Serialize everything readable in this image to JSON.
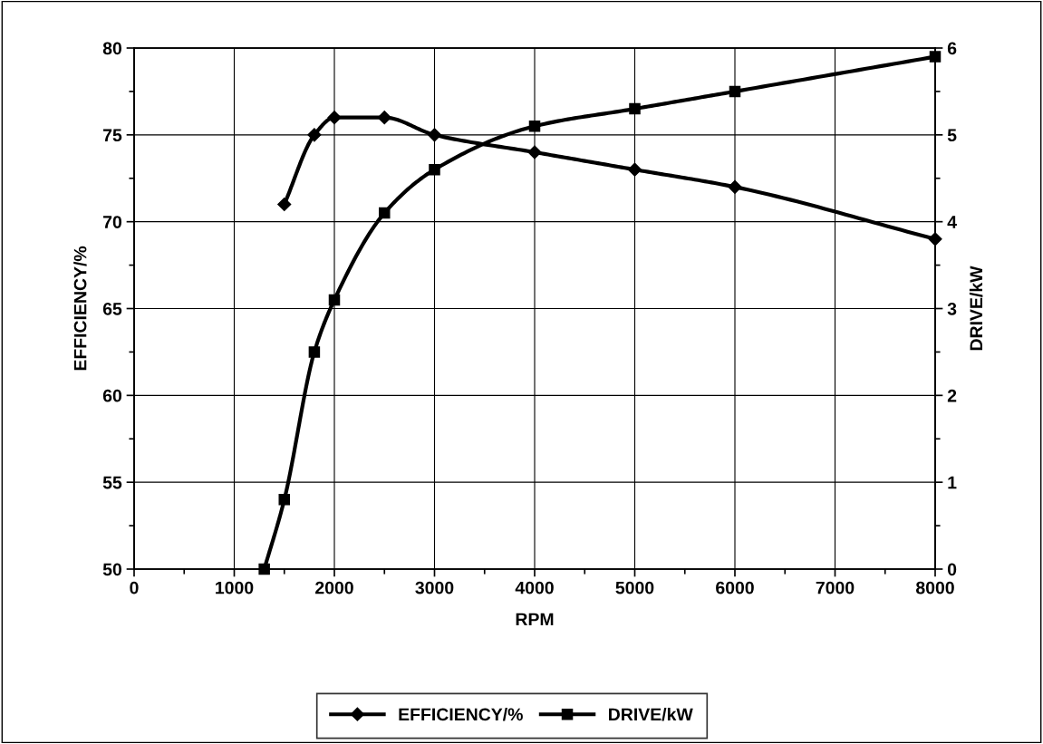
{
  "chart_data": {
    "type": "line",
    "xlabel": "RPM",
    "ylabel": "EFFICIENCY/%",
    "y2label": "DRIVE/kW",
    "series": [
      {
        "name": "EFFICIENCY/%",
        "color": "#000000",
        "marker": "diamond",
        "x": [
          1500,
          1800,
          2000,
          2500,
          3000,
          4000,
          5000,
          6000,
          8000
        ],
        "values": [
          71,
          75,
          76,
          76,
          75,
          74,
          73,
          72,
          69
        ]
      },
      {
        "name": "DRIVE/kW",
        "color": "#000000",
        "marker": "square",
        "axis": "y2",
        "x": [
          1300,
          1500,
          1800,
          2000,
          2500,
          3000,
          4000,
          5000,
          6000,
          8000
        ],
        "values": [
          0,
          0.8,
          2.5,
          3.1,
          4.1,
          4.6,
          5.1,
          5.3,
          5.5,
          5.9
        ]
      }
    ],
    "xlim": [
      0,
      8000
    ],
    "xticks": [
      0,
      {
        "value": 500,
        "label": null
      },
      1000,
      {
        "value": 1500,
        "label": null
      },
      2000,
      {
        "value": 2500,
        "label": null
      },
      3000,
      {
        "value": 3500,
        "label": null
      },
      4000,
      {
        "value": 4500,
        "label": null
      },
      5000,
      {
        "value": 5500,
        "label": null
      },
      6000,
      {
        "value": 6500,
        "label": null
      },
      7000,
      {
        "value": 7500,
        "label": null
      },
      8000
    ],
    "ylim": [
      50,
      80
    ],
    "yticks": [
      50,
      {
        "value": 52.5,
        "label": null
      },
      55,
      {
        "value": 57.5,
        "label": null
      },
      60,
      {
        "value": 62.5,
        "label": null
      },
      65,
      {
        "value": 67.5,
        "label": null
      },
      70,
      {
        "value": 72.5,
        "label": null
      },
      75,
      {
        "value": 77.5,
        "label": null
      },
      80
    ],
    "y2lim": [
      0,
      6
    ],
    "y2ticks": [
      0,
      {
        "value": 0.5,
        "label": null
      },
      1,
      {
        "value": 1.5,
        "label": null
      },
      2,
      {
        "value": 2.5,
        "label": null
      },
      3,
      {
        "value": 3.5,
        "label": null
      },
      4,
      {
        "value": 4.5,
        "label": null
      },
      5,
      {
        "value": 5.5,
        "label": null
      },
      6
    ],
    "grid": true,
    "legend": "bottom",
    "line_style": "solid"
  }
}
